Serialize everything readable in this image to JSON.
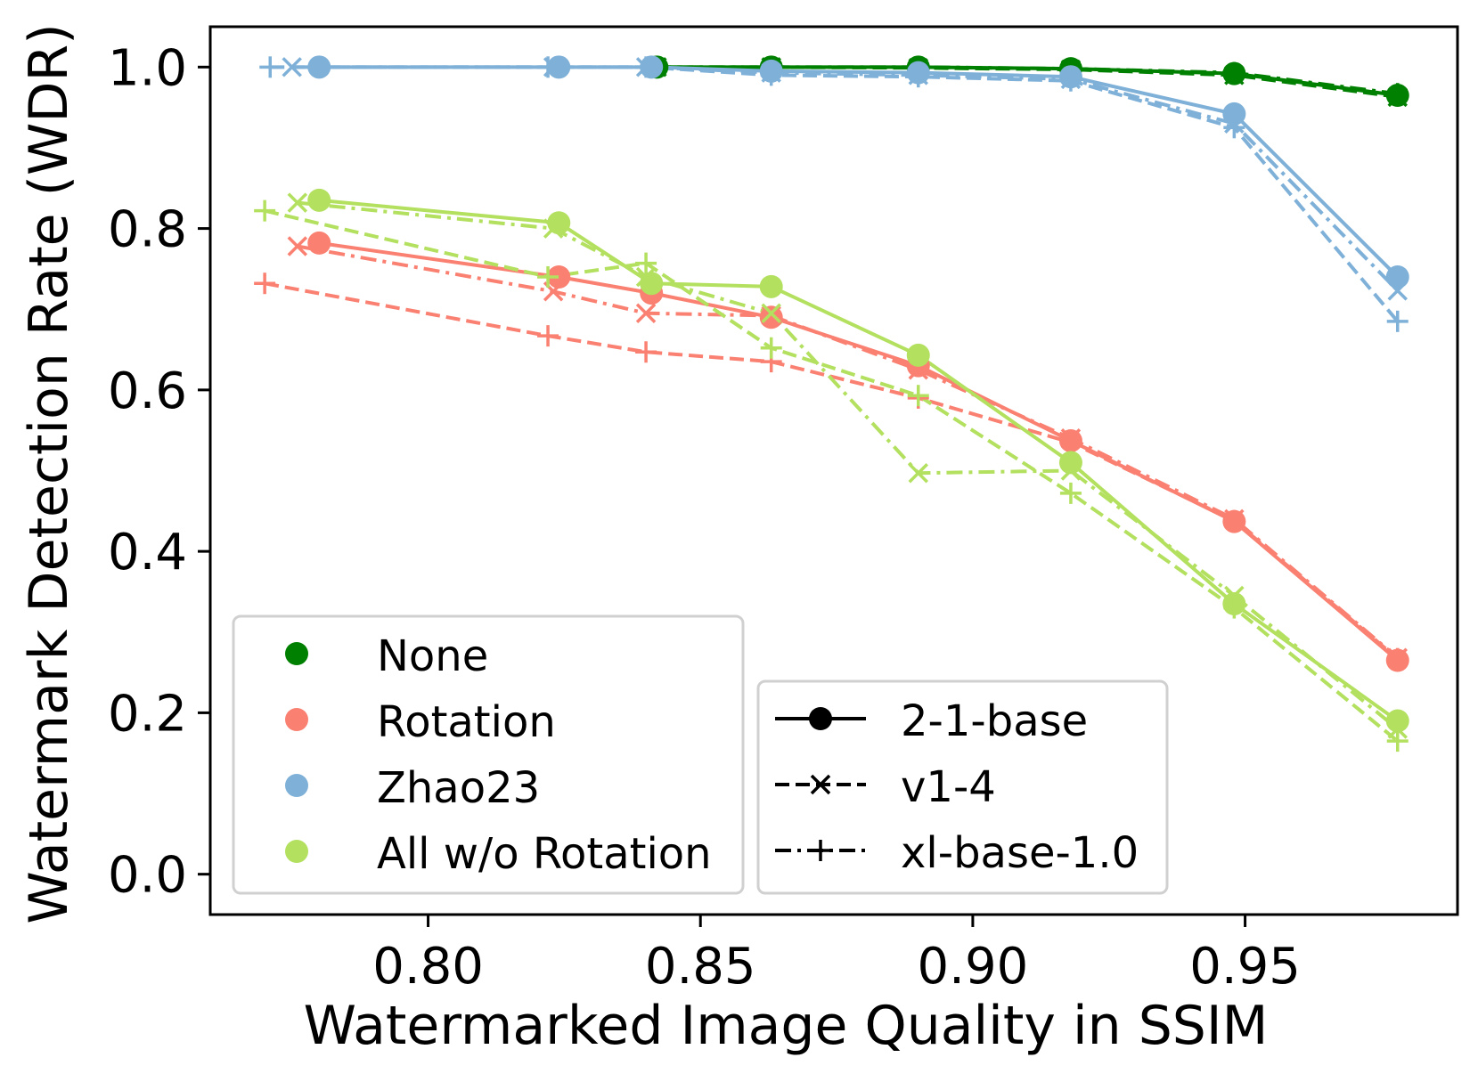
{
  "chart_data": {
    "type": "line",
    "title": "",
    "xlabel": "Watermarked Image Quality in SSIM",
    "ylabel": "Watermark Detection Rate (WDR)",
    "xlim": [
      0.76,
      0.989
    ],
    "ylim": [
      -0.05,
      1.05
    ],
    "xticks": [
      0.8,
      0.85,
      0.9,
      0.95
    ],
    "xtick_labels": [
      "0.80",
      "0.85",
      "0.90",
      "0.95"
    ],
    "yticks": [
      0.0,
      0.2,
      0.4,
      0.6,
      0.8,
      1.0
    ],
    "ytick_labels": [
      "0.0",
      "0.2",
      "0.4",
      "0.6",
      "0.8",
      "1.0"
    ],
    "grid": false,
    "color_legend": {
      "placement": "lower-left",
      "entries": [
        {
          "label": "None",
          "color": "#008000"
        },
        {
          "label": "Rotation",
          "color": "#FA8072"
        },
        {
          "label": "Zhao23",
          "color": "#7EB0D8"
        },
        {
          "label": "All w/o Rotation",
          "color": "#B3E05F"
        }
      ]
    },
    "style_legend": {
      "placement": "lower-center",
      "entries": [
        {
          "label": "2-1-base",
          "linestyle": "solid",
          "marker": "circle"
        },
        {
          "label": "v1-4",
          "linestyle": "dashed",
          "marker": "x"
        },
        {
          "label": "xl-base-1.0",
          "linestyle": "dashdot",
          "marker": "plus"
        }
      ]
    },
    "series": [
      {
        "name": "None / 2-1-base",
        "group": "None",
        "model": "2-1-base",
        "color": "#008000",
        "linestyle": "solid",
        "marker": "circle",
        "x": [
          0.978,
          0.948,
          0.918,
          0.89,
          0.863,
          0.842
        ],
        "y": [
          0.965,
          0.992,
          0.998,
          1.0,
          1.0,
          1.0
        ]
      },
      {
        "name": "None / v1-4",
        "group": "None",
        "model": "v1-4",
        "color": "#008000",
        "linestyle": "dashed",
        "marker": "x",
        "x": [
          0.978,
          0.948,
          0.918,
          0.89,
          0.863,
          0.842
        ],
        "y": [
          0.963,
          0.99,
          0.997,
          0.999,
          1.0,
          1.0
        ]
      },
      {
        "name": "None / xl-base-1.0",
        "group": "None",
        "model": "xl-base-1.0",
        "color": "#008000",
        "linestyle": "dashdot",
        "marker": "plus",
        "x": [
          0.978,
          0.948,
          0.918,
          0.89,
          0.863,
          0.842
        ],
        "y": [
          0.967,
          0.993,
          0.998,
          1.0,
          1.0,
          1.0
        ]
      },
      {
        "name": "Rotation / 2-1-base",
        "group": "Rotation",
        "model": "2-1-base",
        "color": "#FA8072",
        "linestyle": "solid",
        "marker": "circle",
        "x": [
          0.78,
          0.824,
          0.841,
          0.863,
          0.89,
          0.918,
          0.948,
          0.978
        ],
        "y": [
          0.782,
          0.74,
          0.72,
          0.69,
          0.63,
          0.537,
          0.437,
          0.265
        ]
      },
      {
        "name": "Rotation / v1-4",
        "group": "Rotation",
        "model": "v1-4",
        "color": "#FA8072",
        "linestyle": "dashdot",
        "marker": "x",
        "x": [
          0.776,
          0.823,
          0.84,
          0.863,
          0.89,
          0.918,
          0.948,
          0.978
        ],
        "y": [
          0.778,
          0.722,
          0.695,
          0.692,
          0.625,
          0.54,
          0.44,
          0.268
        ]
      },
      {
        "name": "Rotation / xl-base-1.0",
        "group": "Rotation",
        "model": "xl-base-1.0",
        "color": "#FA8072",
        "linestyle": "dashed",
        "marker": "plus",
        "x": [
          0.77,
          0.822,
          0.84,
          0.863,
          0.89,
          0.918,
          0.948,
          0.978
        ],
        "y": [
          0.732,
          0.667,
          0.647,
          0.635,
          0.59,
          0.535,
          0.438,
          0.267
        ]
      },
      {
        "name": "Zhao23 / 2-1-base",
        "group": "Zhao23",
        "model": "2-1-base",
        "color": "#7EB0D8",
        "linestyle": "solid",
        "marker": "circle",
        "x": [
          0.78,
          0.824,
          0.841,
          0.863,
          0.89,
          0.918,
          0.948,
          0.978
        ],
        "y": [
          1.0,
          1.0,
          1.0,
          0.995,
          0.993,
          0.988,
          0.942,
          0.74
        ]
      },
      {
        "name": "Zhao23 / v1-4",
        "group": "Zhao23",
        "model": "v1-4",
        "color": "#7EB0D8",
        "linestyle": "dashdot",
        "marker": "x",
        "x": [
          0.775,
          0.823,
          0.84,
          0.863,
          0.89,
          0.918,
          0.948,
          0.978
        ],
        "y": [
          1.0,
          1.0,
          1.0,
          0.993,
          0.99,
          0.985,
          0.93,
          0.723
        ]
      },
      {
        "name": "Zhao23 / xl-base-1.0",
        "group": "Zhao23",
        "model": "xl-base-1.0",
        "color": "#7EB0D8",
        "linestyle": "dashed",
        "marker": "plus",
        "x": [
          0.771,
          0.822,
          0.84,
          0.863,
          0.89,
          0.918,
          0.948,
          0.978
        ],
        "y": [
          1.0,
          1.0,
          1.0,
          0.99,
          0.988,
          0.983,
          0.925,
          0.685
        ]
      },
      {
        "name": "All w/o Rotation / 2-1-base",
        "group": "All w/o Rotation",
        "model": "2-1-base",
        "color": "#B3E05F",
        "linestyle": "solid",
        "marker": "circle",
        "x": [
          0.78,
          0.824,
          0.841,
          0.863,
          0.89,
          0.918,
          0.948,
          0.978
        ],
        "y": [
          0.835,
          0.807,
          0.732,
          0.728,
          0.643,
          0.51,
          0.335,
          0.19
        ]
      },
      {
        "name": "All w/o Rotation / v1-4",
        "group": "All w/o Rotation",
        "model": "v1-4",
        "color": "#B3E05F",
        "linestyle": "dashdot",
        "marker": "x",
        "x": [
          0.776,
          0.823,
          0.84,
          0.863,
          0.89,
          0.918,
          0.948,
          0.978
        ],
        "y": [
          0.832,
          0.8,
          0.74,
          0.695,
          0.497,
          0.5,
          0.345,
          0.18
        ]
      },
      {
        "name": "All w/o Rotation / xl-base-1.0",
        "group": "All w/o Rotation",
        "model": "xl-base-1.0",
        "color": "#B3E05F",
        "linestyle": "dashed",
        "marker": "plus",
        "x": [
          0.77,
          0.822,
          0.84,
          0.863,
          0.89,
          0.918,
          0.948,
          0.978
        ],
        "y": [
          0.822,
          0.74,
          0.757,
          0.652,
          0.593,
          0.472,
          0.33,
          0.165
        ]
      }
    ]
  }
}
